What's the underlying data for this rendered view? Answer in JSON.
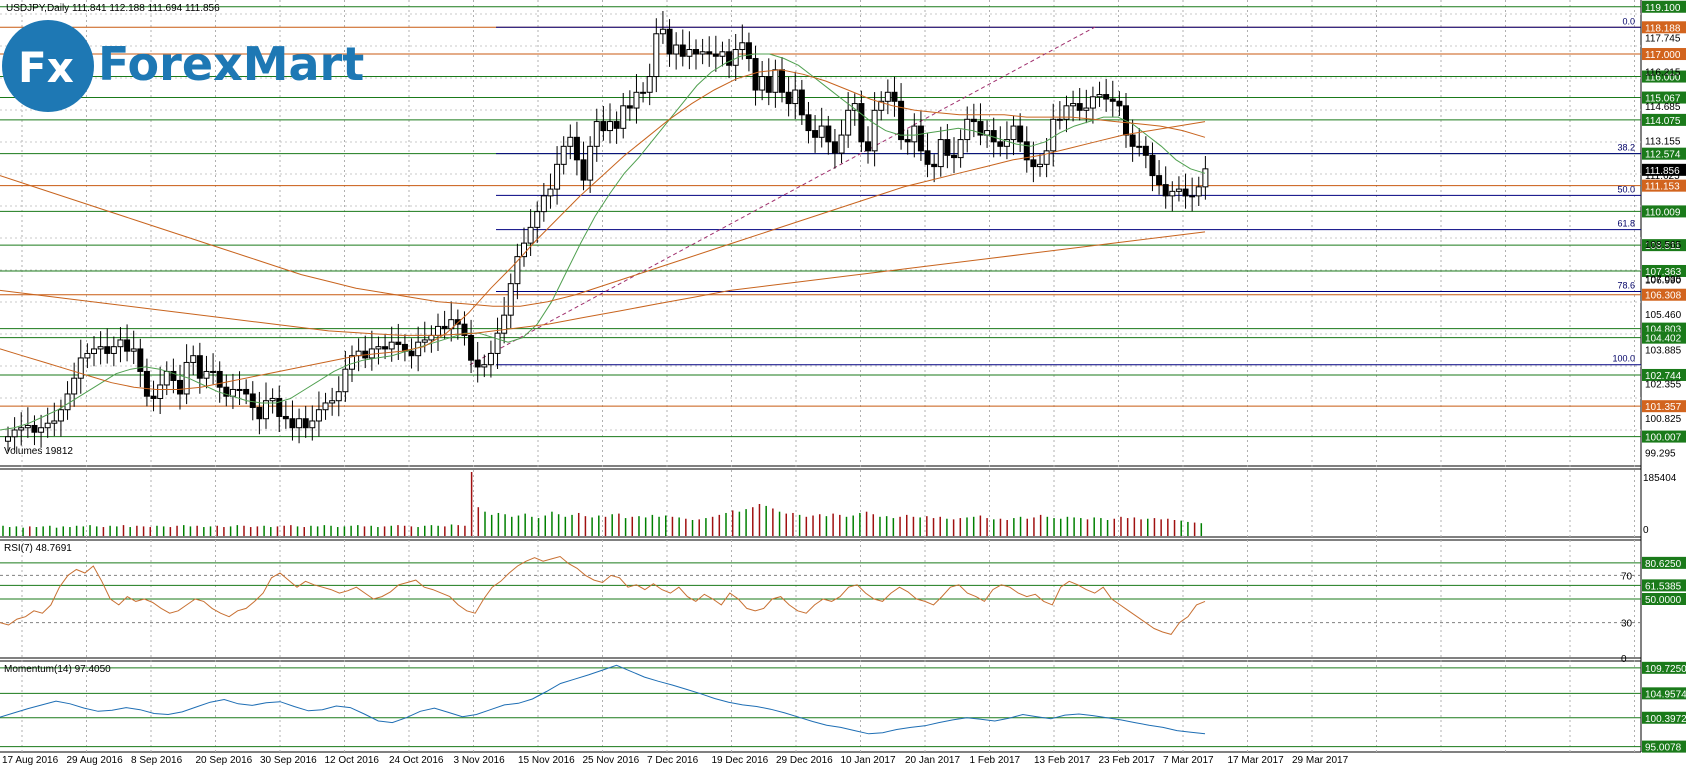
{
  "header": {
    "symbol_info": "USDJPY,Daily  111.841 112.188 111.694 111.856"
  },
  "logo": {
    "badge": "Fx",
    "text": "ForexMart",
    "color": "#1e78b4"
  },
  "colors": {
    "bull": "#008000",
    "bear": "#000000",
    "ma_orange": "#c8641e",
    "ma_green": "#50a050",
    "hline_green": "#1a7a1a",
    "hline_orange": "#c85a10",
    "fib_navy": "#000080",
    "volume_up": "#008000",
    "volume_down": "#a01010",
    "rsi_line": "#c87032",
    "momentum_line": "#1e6eb4",
    "price_badge_green": "#1a7a1a",
    "price_badge_orange": "#d2641e",
    "current_price_badge": "#000000"
  },
  "price_axis": {
    "min": 98.7,
    "max": 119.4,
    "tick_labels": [
      "117.745",
      "116.215",
      "114.685",
      "113.155",
      "111.625",
      "108.565",
      "107.035",
      "106.990",
      "105.460",
      "103.885",
      "102.355",
      "100.825",
      "99.295"
    ]
  },
  "price_levels": [
    {
      "value": "119.100",
      "color": "green"
    },
    {
      "value": "118.188",
      "color": "orange"
    },
    {
      "value": "117.000",
      "color": "orange"
    },
    {
      "value": "116.000",
      "color": "green"
    },
    {
      "value": "115.067",
      "color": "green"
    },
    {
      "value": "114.075",
      "color": "green"
    },
    {
      "value": "112.574",
      "color": "green"
    },
    {
      "value": "111.153",
      "color": "orange"
    },
    {
      "value": "110.009",
      "color": "green"
    },
    {
      "value": "108.511",
      "color": "green"
    },
    {
      "value": "107.363",
      "color": "green"
    },
    {
      "value": "106.308",
      "color": "orange"
    },
    {
      "value": "104.803",
      "color": "green"
    },
    {
      "value": "104.402",
      "color": "green"
    },
    {
      "value": "102.744",
      "color": "green"
    },
    {
      "value": "101.357",
      "color": "orange"
    },
    {
      "value": "100.007",
      "color": "green"
    }
  ],
  "current_price": "111.856",
  "fibonacci": [
    {
      "label": "0.0",
      "price": 118.188
    },
    {
      "label": "38.2",
      "price": 112.574
    },
    {
      "label": "50.0",
      "price": 110.72
    },
    {
      "label": "61.8",
      "price": 109.2
    },
    {
      "label": "78.6",
      "price": 106.45
    },
    {
      "label": "100.0",
      "price": 103.2
    }
  ],
  "date_axis": [
    "17 Aug 2016",
    "29 Aug 2016",
    "8 Sep 2016",
    "20 Sep 2016",
    "30 Sep 2016",
    "12 Oct 2016",
    "24 Oct 2016",
    "3 Nov 2016",
    "15 Nov 2016",
    "25 Nov 2016",
    "7 Dec 2016",
    "19 Dec 2016",
    "29 Dec 2016",
    "10 Jan 2017",
    "20 Jan 2017",
    "1 Feb 2017",
    "13 Feb 2017",
    "23 Feb 2017",
    "7 Mar 2017",
    "17 Mar 2017",
    "29 Mar 2017"
  ],
  "volumes": {
    "label": "Volumes 19812",
    "axis_top": "185404",
    "axis_bottom": "0"
  },
  "rsi": {
    "label": "RSI(7) 48.7691",
    "axis_labels": [
      "70",
      "30",
      "0"
    ],
    "levels": [
      {
        "value": "80.6250"
      },
      {
        "value": "61.5385"
      },
      {
        "value": "50.0000"
      }
    ]
  },
  "momentum": {
    "label": "Momentum(14) 97.4050",
    "levels": [
      {
        "value": "109.7250"
      },
      {
        "value": "104.9574"
      },
      {
        "value": "100.3972"
      },
      {
        "value": "95.0078"
      }
    ]
  },
  "chart_data": {
    "type": "candlestick",
    "series": [
      {
        "name": "USDJPY",
        "close": [
          100.0,
          100.3,
          100.4,
          100.5,
          100.2,
          100.4,
          100.6,
          100.7,
          101.2,
          101.9,
          102.6,
          103.5,
          103.7,
          103.9,
          104.0,
          103.7,
          104.0,
          104.3,
          103.8,
          103.9,
          102.9,
          101.8,
          101.7,
          102.3,
          102.9,
          102.5,
          101.9,
          103.3,
          103.6,
          102.6,
          102.9,
          102.9,
          102.2,
          101.8,
          102.1,
          102.1,
          101.9,
          101.3,
          100.8,
          101.6,
          101.7,
          100.9,
          100.8,
          100.4,
          100.8,
          100.4,
          100.7,
          101.2,
          101.5,
          101.6,
          102.0,
          103.0,
          103.6,
          103.8,
          103.5,
          103.9,
          104.0,
          103.9,
          104.2,
          104.1,
          103.8,
          103.6,
          104.2,
          104.3,
          104.5,
          104.9,
          104.8,
          105.2,
          105.0,
          104.5,
          103.4,
          103.1,
          103.2,
          103.7,
          104.6,
          105.4,
          106.8,
          108.0,
          108.6,
          109.3,
          110.0,
          110.7,
          111.0,
          112.1,
          112.9,
          113.3,
          112.3,
          111.4,
          112.9,
          114.0,
          113.6,
          114.0,
          113.7,
          114.7,
          114.6,
          115.3,
          115.3,
          116.0,
          117.9,
          118.1,
          117.0,
          117.4,
          116.9,
          117.2,
          117.0,
          117.1,
          117.0,
          116.9,
          117.1,
          116.5,
          117.2,
          117.5,
          116.8,
          115.4,
          116.0,
          115.3,
          116.3,
          115.3,
          114.8,
          115.4,
          114.3,
          113.6,
          113.3,
          113.8,
          113.1,
          112.6,
          113.4,
          114.5,
          114.8,
          113.1,
          112.7,
          114.5,
          114.9,
          115.3,
          114.9,
          113.2,
          113.1,
          113.8,
          112.7,
          112.1,
          112.0,
          113.2,
          112.5,
          112.4,
          113.2,
          114.1,
          114.0,
          113.4,
          113.6,
          113.1,
          112.9,
          113.2,
          113.8,
          113.1,
          112.3,
          112.0,
          112.1,
          112.7,
          114.1,
          114.1,
          114.7,
          114.8,
          114.5,
          114.6,
          115.1,
          115.2,
          115.0,
          114.9,
          114.7,
          113.4,
          112.9,
          112.9,
          112.5,
          111.6,
          111.2,
          110.7,
          110.9,
          111.0,
          110.7,
          110.7,
          111.1,
          111.9
        ],
        "high_low_note": "OHLC values approximated from visual"
      }
    ],
    "ma_fast": [
      100.3,
      100.4,
      100.6,
      100.9,
      101.2,
      101.6,
      102.0,
      102.4,
      102.8,
      103.0,
      103.1,
      103.0,
      102.8,
      102.6,
      102.3,
      102.0,
      101.8,
      101.6,
      101.5,
      101.5,
      101.7,
      102.1,
      102.5,
      102.9,
      103.2,
      103.4,
      103.5,
      103.6,
      103.8,
      104.0,
      104.2,
      104.4,
      104.6,
      104.6,
      104.4,
      104.2,
      104.4,
      105.0,
      106.0,
      107.3,
      108.6,
      109.8,
      110.8,
      111.7,
      112.4,
      113.2,
      114.0,
      114.8,
      115.6,
      116.2,
      116.6,
      116.9,
      117.0,
      117.0,
      116.8,
      116.5,
      116.0,
      115.5,
      115.0,
      114.5,
      114.0,
      113.6,
      113.4,
      113.4,
      113.5,
      113.6,
      113.7,
      113.6,
      113.4,
      113.2,
      113.0,
      112.9,
      113.1,
      113.5,
      113.8,
      114.0,
      114.2,
      114.2,
      113.9,
      113.4,
      112.9,
      112.3,
      111.9,
      111.7
    ],
    "ma_mid": [
      103.9,
      103.6,
      103.3,
      103.0,
      102.7,
      102.4,
      102.2,
      102.1,
      102.1,
      102.2,
      102.4,
      102.6,
      102.8,
      103.0,
      103.2,
      103.4,
      103.6,
      103.7,
      103.8,
      104.0,
      104.6,
      105.5,
      106.6,
      107.6,
      108.7,
      109.7,
      110.7,
      111.6,
      112.5,
      113.3,
      114.1,
      114.8,
      115.4,
      115.9,
      116.2,
      116.3,
      116.1,
      115.8,
      115.4,
      115.0,
      114.7,
      114.5,
      114.4,
      114.3,
      114.3,
      114.3,
      114.2,
      114.2,
      114.2,
      114.1,
      114.0,
      113.9,
      113.8,
      113.6,
      113.3
    ],
    "ma_slow": [
      111.6,
      111.2,
      110.8,
      110.4,
      110.0,
      109.6,
      109.2,
      108.8,
      108.4,
      108.0,
      107.6,
      107.2,
      106.9,
      106.6,
      106.4,
      106.2,
      106.0,
      105.9,
      105.8,
      105.8,
      106.0,
      106.3,
      106.7,
      107.1,
      107.5,
      107.9,
      108.3,
      108.7,
      109.1,
      109.5,
      109.9,
      110.3,
      110.7,
      111.1,
      111.4,
      111.7,
      112.0,
      112.3,
      112.5,
      112.8,
      113.1,
      113.4,
      113.6,
      113.8,
      114.0
    ],
    "ma_long": [
      106.5,
      106.3,
      106.1,
      105.9,
      105.7,
      105.5,
      105.3,
      105.1,
      104.9,
      104.7,
      104.6,
      104.5,
      104.5,
      104.6,
      104.8,
      105.0,
      105.3,
      105.6,
      105.9,
      106.2,
      106.5,
      106.7,
      106.9,
      107.1,
      107.3,
      107.5,
      107.7,
      107.9,
      108.1,
      108.3,
      108.5,
      108.7,
      108.9,
      109.1
    ],
    "volumes": [
      0.16,
      0.14,
      0.15,
      0.13,
      0.15,
      0.14,
      0.15,
      0.16,
      0.13,
      0.15,
      0.14,
      0.16,
      0.15,
      0.17,
      0.15,
      0.14,
      0.16,
      0.15,
      0.17,
      0.14,
      0.16,
      0.15,
      0.14,
      0.16,
      0.15,
      0.14,
      0.16,
      0.17,
      0.15,
      0.16,
      0.14,
      0.15,
      0.16,
      0.14,
      0.15,
      0.17,
      0.16,
      0.14,
      0.15,
      0.16,
      0.14,
      0.15,
      0.16,
      0.17,
      0.15,
      0.14,
      0.16,
      0.15,
      0.17,
      0.16,
      0.14,
      0.15,
      0.16,
      0.17,
      0.15,
      0.16,
      0.14,
      0.15,
      0.16,
      0.17,
      0.16,
      0.15,
      0.14,
      0.16,
      0.17,
      0.16,
      0.15,
      0.18,
      0.17,
      0.16,
      1.0,
      0.45,
      0.38,
      0.33,
      0.36,
      0.34,
      0.3,
      0.32,
      0.35,
      0.3,
      0.28,
      0.32,
      0.38,
      0.34,
      0.3,
      0.33,
      0.36,
      0.31,
      0.29,
      0.32,
      0.3,
      0.34,
      0.35,
      0.28,
      0.3,
      0.31,
      0.29,
      0.33,
      0.3,
      0.32,
      0.3,
      0.29,
      0.27,
      0.25,
      0.26,
      0.28,
      0.3,
      0.33,
      0.36,
      0.4,
      0.38,
      0.42,
      0.45,
      0.5,
      0.47,
      0.43,
      0.38,
      0.35,
      0.36,
      0.33,
      0.3,
      0.32,
      0.34,
      0.31,
      0.35,
      0.33,
      0.3,
      0.32,
      0.36,
      0.38,
      0.34,
      0.3,
      0.31,
      0.28,
      0.3,
      0.33,
      0.3,
      0.29,
      0.31,
      0.28,
      0.3,
      0.27,
      0.26,
      0.28,
      0.29,
      0.3,
      0.32,
      0.28,
      0.26,
      0.27,
      0.25,
      0.28,
      0.3,
      0.27,
      0.29,
      0.33,
      0.3,
      0.28,
      0.27,
      0.3,
      0.29,
      0.28,
      0.26,
      0.29,
      0.28,
      0.25,
      0.27,
      0.3,
      0.28,
      0.29,
      0.26,
      0.27,
      0.28,
      0.26,
      0.27,
      0.25,
      0.24,
      0.22,
      0.21,
      0.2
    ],
    "rsi": [
      30,
      28,
      33,
      35,
      40,
      38,
      45,
      60,
      70,
      75,
      72,
      78,
      65,
      50,
      45,
      52,
      48,
      50,
      47,
      42,
      38,
      40,
      45,
      50,
      48,
      42,
      38,
      35,
      40,
      42,
      48,
      55,
      68,
      72,
      66,
      60,
      65,
      62,
      60,
      58,
      55,
      57,
      60,
      55,
      50,
      52,
      56,
      62,
      64,
      66,
      60,
      58,
      55,
      52,
      45,
      40,
      38,
      50,
      60,
      65,
      72,
      78,
      82,
      85,
      82,
      84,
      86,
      80,
      76,
      70,
      66,
      64,
      70,
      68,
      60,
      62,
      58,
      63,
      58,
      55,
      60,
      52,
      48,
      54,
      50,
      45,
      55,
      50,
      42,
      40,
      42,
      50,
      52,
      45,
      40,
      38,
      45,
      50,
      48,
      52,
      60,
      62,
      55,
      50,
      48,
      55,
      60,
      56,
      50,
      48,
      45,
      52,
      60,
      62,
      55,
      52,
      48,
      58,
      62,
      60,
      55,
      52,
      54,
      48,
      45,
      60,
      65,
      62,
      58,
      55,
      60,
      50,
      45,
      40,
      35,
      30,
      25,
      22,
      20,
      30,
      35,
      45,
      48
    ],
    "momentum": [
      100.5,
      101.3,
      102.1,
      102.8,
      103.5,
      103.0,
      102.2,
      101.6,
      101.8,
      102.3,
      101.9,
      101.2,
      101.0,
      101.5,
      102.4,
      103.3,
      103.8,
      103.0,
      102.7,
      103.2,
      103.4,
      102.5,
      101.7,
      101.9,
      102.6,
      102.3,
      101.1,
      99.8,
      99.5,
      100.4,
      101.6,
      102.2,
      101.4,
      100.6,
      101.0,
      101.9,
      102.8,
      103.1,
      103.9,
      105.3,
      106.8,
      107.6,
      108.4,
      109.3,
      110.2,
      109.1,
      108.0,
      107.2,
      106.5,
      105.7,
      104.9,
      104.0,
      103.3,
      102.8,
      102.5,
      102.0,
      101.3,
      100.5,
      99.7,
      99.0,
      98.6,
      98.0,
      97.4,
      97.6,
      98.2,
      98.6,
      98.9,
      99.5,
      100.0,
      100.4,
      100.1,
      99.8,
      100.3,
      101.0,
      100.6,
      100.2,
      100.9,
      101.1,
      100.8,
      100.4,
      100.0,
      99.5,
      99.0,
      98.6,
      98.0,
      97.7,
      97.4
    ]
  }
}
